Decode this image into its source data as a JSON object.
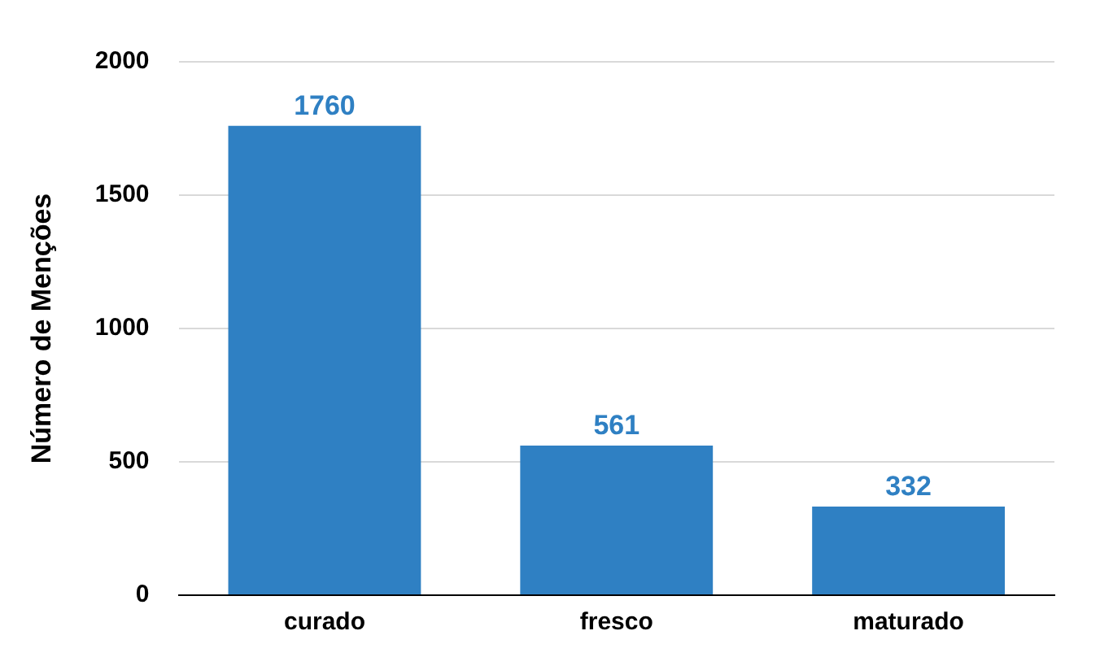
{
  "chart_data": {
    "type": "bar",
    "ylabel": "Número de Menções",
    "categories": [
      "curado",
      "fresco",
      "maturado"
    ],
    "values": [
      1760,
      561,
      332
    ],
    "color": "#2f80c3",
    "ylim": [
      0,
      2000
    ],
    "yticks": [
      0,
      500,
      1000,
      1500,
      2000
    ],
    "grid": "y",
    "data_labels": true
  }
}
